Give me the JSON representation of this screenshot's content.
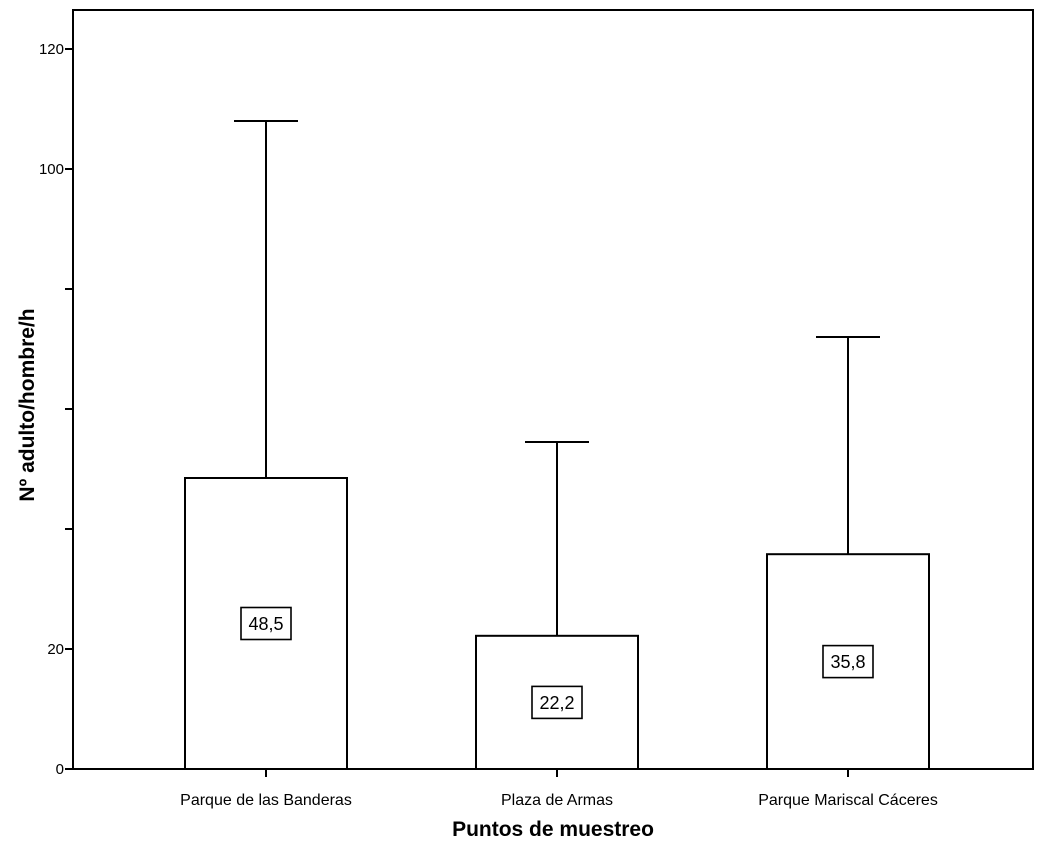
{
  "chart_data": {
    "type": "bar",
    "title": "",
    "xlabel": "Puntos de muestreo",
    "ylabel": "Nº adulto/hombre/h",
    "categories": [
      "Parque de las Banderas",
      "Plaza de Armas",
      "Parque Mariscal Cáceres"
    ],
    "values": [
      48.5,
      22.2,
      35.8
    ],
    "value_labels": [
      "48,5",
      "22,2",
      "35,8"
    ],
    "error_upper": [
      108,
      54.5,
      72
    ],
    "ylim": [
      0,
      127
    ],
    "y_ticks": [
      0,
      20,
      40,
      60,
      80,
      100,
      120
    ],
    "y_tick_labels": [
      "0",
      "20",
      "",
      "",
      "",
      "100",
      "120"
    ],
    "grid": false,
    "legend": "none",
    "colors": {
      "bar_fill": "#ffffff",
      "stroke": "#000000"
    }
  }
}
